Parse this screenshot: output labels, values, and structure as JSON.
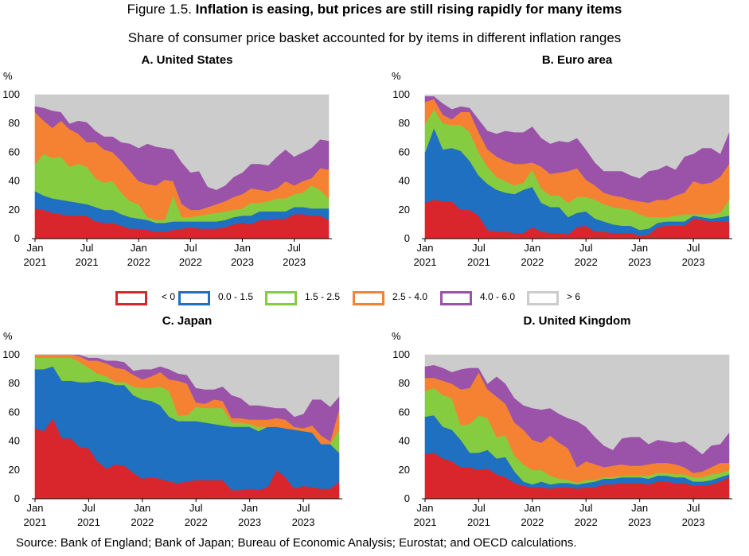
{
  "figure": {
    "title_prefix": "Figure 1.5. ",
    "title_bold": "Inflation is easing, but prices are still rising rapidly for many items",
    "subtitle": "Share of consumer price basket accounted for by items in different inflation ranges",
    "source": "Source: Bank of England; Bank of Japan; Bureau of Economic Analysis; Eurostat; and OECD calculations."
  },
  "legend": [
    {
      "label": "< 0",
      "color": "#d9262c"
    },
    {
      "label": "0.0 - 1.5",
      "color": "#1f70c1"
    },
    {
      "label": "1.5 - 2.5",
      "color": "#85cc40"
    },
    {
      "label": "2.5 - 4.0",
      "color": "#f58232"
    },
    {
      "label": "4.0 - 6.0",
      "color": "#9b52a9"
    },
    {
      "label": "> 6",
      "color": "#cccccc"
    }
  ],
  "chart_data": [
    {
      "type": "area",
      "stacked": true,
      "title": "A. United States",
      "ylabel": "%",
      "ylim": [
        0,
        100
      ],
      "yticks": [
        0,
        20,
        40,
        60,
        80,
        100
      ],
      "x_start": "Jan 2021",
      "x_count": 35,
      "xticks": [
        {
          "index": 0,
          "label": "Jan",
          "year": "2021"
        },
        {
          "index": 6,
          "label": "Jul",
          "year": "2021"
        },
        {
          "index": 12,
          "label": "Jan",
          "year": "2022"
        },
        {
          "index": 18,
          "label": "Jul",
          "year": "2022"
        },
        {
          "index": 24,
          "label": "Jan",
          "year": "2023"
        },
        {
          "index": 30,
          "label": "Jul",
          "year": "2023"
        }
      ],
      "series": [
        {
          "name": "< 0",
          "values": [
            21,
            20,
            18,
            17,
            16,
            16,
            16,
            12,
            11,
            11,
            9,
            7,
            7,
            6,
            5,
            5,
            6,
            7,
            8,
            7,
            7,
            7,
            8,
            10,
            11,
            10,
            13,
            13,
            14,
            14,
            17,
            17,
            16,
            16,
            13
          ]
        },
        {
          "name": "0.0 - 1.5",
          "values": [
            12,
            10,
            10,
            10,
            10,
            9,
            8,
            10,
            9,
            9,
            8,
            8,
            7,
            7,
            6,
            6,
            6,
            5,
            4,
            5,
            5,
            5,
            5,
            5,
            5,
            6,
            6,
            6,
            5,
            5,
            5,
            5,
            5,
            5,
            8
          ]
        },
        {
          "name": "1.5 - 2.5",
          "values": [
            19,
            29,
            28,
            30,
            24,
            27,
            26,
            20,
            19,
            20,
            15,
            11,
            10,
            2,
            2,
            2,
            18,
            3,
            3,
            4,
            5,
            6,
            6,
            5,
            5,
            9,
            6,
            7,
            9,
            9,
            9,
            10,
            16,
            13,
            7
          ]
        },
        {
          "name": "2.5 - 4.0",
          "values": [
            36,
            23,
            21,
            25,
            26,
            21,
            17,
            25,
            23,
            20,
            22,
            21,
            16,
            23,
            24,
            28,
            10,
            9,
            5,
            4,
            5,
            6,
            7,
            9,
            10,
            10,
            9,
            7,
            7,
            12,
            6,
            8,
            5,
            15,
            20
          ]
        },
        {
          "name": "4.0 - 6.0",
          "values": [
            4,
            9,
            12,
            6,
            4,
            9,
            14,
            8,
            9,
            11,
            13,
            19,
            23,
            28,
            27,
            22,
            22,
            29,
            26,
            27,
            14,
            10,
            11,
            14,
            15,
            17,
            18,
            18,
            22,
            22,
            20,
            20,
            21,
            20,
            20
          ]
        },
        {
          "name": "> 6",
          "values": [
            8,
            9,
            11,
            12,
            20,
            18,
            19,
            25,
            29,
            29,
            33,
            34,
            37,
            34,
            36,
            37,
            38,
            47,
            54,
            53,
            64,
            66,
            63,
            57,
            54,
            48,
            48,
            49,
            43,
            38,
            43,
            40,
            37,
            31,
            32
          ]
        }
      ]
    },
    {
      "type": "area",
      "stacked": true,
      "title": "B. Euro area",
      "ylabel": "%",
      "ylim": [
        0,
        100
      ],
      "yticks": [
        0,
        20,
        40,
        60,
        80,
        100
      ],
      "x_start": "Jan 2021",
      "x_count": 35,
      "xticks": [
        {
          "index": 0,
          "label": "Jan",
          "year": "2021"
        },
        {
          "index": 6,
          "label": "Jul",
          "year": "2021"
        },
        {
          "index": 12,
          "label": "Jan",
          "year": "2022"
        },
        {
          "index": 18,
          "label": "Jul",
          "year": "2022"
        },
        {
          "index": 24,
          "label": "Jan",
          "year": "2023"
        },
        {
          "index": 30,
          "label": "Jul",
          "year": "2023"
        }
      ],
      "series": [
        {
          "name": "< 0",
          "values": [
            25,
            27,
            26,
            26,
            20,
            20,
            16,
            6,
            5,
            5,
            4,
            4,
            8,
            5,
            4,
            4,
            3,
            8,
            9,
            5,
            5,
            4,
            4,
            4,
            2,
            3,
            8,
            9,
            9,
            9,
            14,
            13,
            12,
            12,
            12
          ]
        },
        {
          "name": "0.0 - 1.5",
          "values": [
            35,
            50,
            36,
            37,
            41,
            34,
            28,
            32,
            29,
            27,
            27,
            30,
            28,
            20,
            18,
            18,
            12,
            10,
            10,
            9,
            7,
            6,
            5,
            5,
            4,
            4,
            3,
            3,
            3,
            3,
            2,
            2,
            2,
            3,
            4
          ]
        },
        {
          "name": "1.5 - 2.5",
          "values": [
            20,
            13,
            18,
            16,
            18,
            20,
            16,
            12,
            9,
            8,
            6,
            5,
            12,
            10,
            8,
            8,
            10,
            11,
            10,
            13,
            12,
            12,
            12,
            11,
            11,
            8,
            4,
            3,
            4,
            5,
            1,
            2,
            3,
            3,
            11
          ]
        },
        {
          "name": "2.5 - 4.0",
          "values": [
            15,
            7,
            6,
            4,
            9,
            14,
            14,
            12,
            14,
            14,
            15,
            13,
            5,
            15,
            15,
            16,
            22,
            20,
            12,
            10,
            8,
            8,
            8,
            7,
            9,
            10,
            12,
            12,
            14,
            15,
            23,
            21,
            22,
            25,
            25
          ]
        },
        {
          "name": "4.0 - 6.0",
          "values": [
            4,
            2,
            8,
            7,
            4,
            3,
            9,
            13,
            16,
            21,
            22,
            22,
            25,
            20,
            21,
            22,
            20,
            21,
            21,
            16,
            15,
            17,
            18,
            17,
            16,
            22,
            21,
            24,
            18,
            25,
            19,
            25,
            24,
            16,
            22
          ]
        },
        {
          "name": "> 6",
          "values": [
            1,
            1,
            6,
            10,
            8,
            9,
            17,
            25,
            27,
            25,
            26,
            26,
            22,
            30,
            34,
            32,
            33,
            30,
            38,
            47,
            53,
            53,
            53,
            56,
            58,
            53,
            52,
            49,
            52,
            43,
            41,
            37,
            37,
            41,
            26
          ]
        }
      ]
    },
    {
      "type": "area",
      "stacked": true,
      "title": "C. Japan",
      "ylabel": "%",
      "ylim": [
        0,
        100
      ],
      "yticks": [
        0,
        20,
        40,
        60,
        80,
        100
      ],
      "x_start": "Jan 2021",
      "x_count": 35,
      "xticks": [
        {
          "index": 0,
          "label": "Jan",
          "year": "2021"
        },
        {
          "index": 6,
          "label": "Jul",
          "year": "2021"
        },
        {
          "index": 12,
          "label": "Jan",
          "year": "2022"
        },
        {
          "index": 18,
          "label": "Jul",
          "year": "2022"
        },
        {
          "index": 24,
          "label": "Jan",
          "year": "2023"
        },
        {
          "index": 30,
          "label": "Jul",
          "year": "2023"
        }
      ],
      "series": [
        {
          "name": "< 0",
          "values": [
            49,
            47,
            56,
            42,
            42,
            36,
            35,
            26,
            21,
            24,
            23,
            18,
            14,
            15,
            14,
            12,
            11,
            12,
            13,
            13,
            13,
            13,
            6,
            6,
            7,
            6,
            8,
            20,
            15,
            7,
            9,
            8,
            7,
            7,
            12
          ]
        },
        {
          "name": "0.0 - 1.5",
          "values": [
            41,
            43,
            36,
            40,
            40,
            45,
            46,
            56,
            60,
            55,
            56,
            54,
            55,
            53,
            51,
            45,
            43,
            42,
            41,
            40,
            39,
            38,
            44,
            44,
            43,
            41,
            42,
            30,
            34,
            41,
            38,
            38,
            31,
            31,
            20
          ]
        },
        {
          "name": "1.5 - 2.5",
          "values": [
            8,
            8,
            6,
            16,
            16,
            14,
            10,
            5,
            4,
            2,
            2,
            6,
            8,
            9,
            13,
            18,
            4,
            4,
            10,
            10,
            11,
            12,
            3,
            3,
            2,
            3,
            0,
            0,
            0,
            0,
            0,
            0,
            0,
            0,
            16
          ]
        },
        {
          "name": "2.5 - 4.0",
          "values": [
            2,
            2,
            2,
            2,
            2,
            4,
            5,
            9,
            9,
            10,
            9,
            8,
            6,
            8,
            10,
            8,
            24,
            22,
            3,
            3,
            6,
            5,
            3,
            3,
            3,
            5,
            5,
            6,
            6,
            2,
            2,
            5,
            6,
            2,
            14
          ]
        },
        {
          "name": "4.0 - 6.0",
          "values": [
            0,
            0,
            0,
            0,
            0,
            1,
            2,
            2,
            2,
            5,
            5,
            3,
            7,
            5,
            4,
            7,
            5,
            6,
            10,
            10,
            7,
            10,
            16,
            14,
            10,
            10,
            9,
            7,
            8,
            7,
            10,
            18,
            25,
            24,
            9
          ]
        },
        {
          "name": "> 6",
          "values": [
            0,
            0,
            0,
            0,
            0,
            0,
            2,
            2,
            4,
            4,
            5,
            11,
            10,
            10,
            8,
            10,
            13,
            14,
            23,
            24,
            24,
            22,
            28,
            30,
            35,
            35,
            36,
            37,
            37,
            43,
            41,
            31,
            31,
            36,
            29
          ]
        }
      ]
    },
    {
      "type": "area",
      "stacked": true,
      "title": "D. United Kingdom",
      "ylabel": "%",
      "ylim": [
        0,
        100
      ],
      "yticks": [
        0,
        20,
        40,
        60,
        80,
        100
      ],
      "x_start": "Jan 2021",
      "x_count": 35,
      "xticks": [
        {
          "index": 0,
          "label": "Jan",
          "year": "2021"
        },
        {
          "index": 6,
          "label": "Jul",
          "year": "2021"
        },
        {
          "index": 12,
          "label": "Jan",
          "year": "2022"
        },
        {
          "index": 18,
          "label": "Jul",
          "year": "2022"
        },
        {
          "index": 24,
          "label": "Jan",
          "year": "2023"
        },
        {
          "index": 30,
          "label": "Jul",
          "year": "2023"
        }
      ],
      "series": [
        {
          "name": "< 0",
          "values": [
            31,
            32,
            28,
            26,
            22,
            22,
            20,
            21,
            17,
            15,
            11,
            9,
            8,
            8,
            7,
            8,
            8,
            7,
            8,
            8,
            10,
            10,
            11,
            11,
            11,
            10,
            12,
            12,
            11,
            11,
            9,
            9,
            10,
            12,
            15
          ]
        },
        {
          "name": "0.0 - 1.5",
          "values": [
            26,
            26,
            22,
            22,
            19,
            10,
            12,
            13,
            11,
            14,
            8,
            3,
            2,
            4,
            3,
            3,
            3,
            3,
            3,
            4,
            4,
            4,
            4,
            4,
            4,
            4,
            4,
            4,
            4,
            4,
            3,
            3,
            3,
            3,
            2
          ]
        },
        {
          "name": "1.5 - 2.5",
          "values": [
            18,
            19,
            22,
            22,
            10,
            20,
            26,
            22,
            15,
            15,
            11,
            12,
            10,
            8,
            6,
            3,
            2,
            1,
            2,
            1,
            1,
            1,
            1,
            1,
            1,
            2,
            2,
            2,
            2,
            2,
            3,
            3,
            4,
            3,
            3
          ]
        },
        {
          "name": "2.5 - 4.0",
          "values": [
            9,
            7,
            10,
            10,
            25,
            25,
            30,
            20,
            28,
            22,
            23,
            24,
            21,
            19,
            28,
            25,
            22,
            11,
            13,
            11,
            7,
            8,
            8,
            7,
            7,
            8,
            7,
            7,
            7,
            5,
            3,
            4,
            5,
            7,
            5
          ]
        },
        {
          "name": "4.0 - 6.0",
          "values": [
            8,
            9,
            9,
            8,
            14,
            14,
            3,
            4,
            14,
            14,
            17,
            17,
            22,
            23,
            19,
            20,
            21,
            32,
            24,
            19,
            15,
            11,
            18,
            20,
            20,
            14,
            16,
            15,
            15,
            18,
            18,
            12,
            15,
            13,
            21
          ]
        },
        {
          "name": "> 6",
          "values": [
            8,
            7,
            9,
            12,
            10,
            9,
            9,
            20,
            15,
            20,
            30,
            35,
            37,
            38,
            37,
            41,
            44,
            46,
            50,
            57,
            63,
            66,
            58,
            57,
            57,
            62,
            59,
            60,
            61,
            60,
            64,
            69,
            63,
            62,
            54
          ]
        }
      ]
    }
  ]
}
